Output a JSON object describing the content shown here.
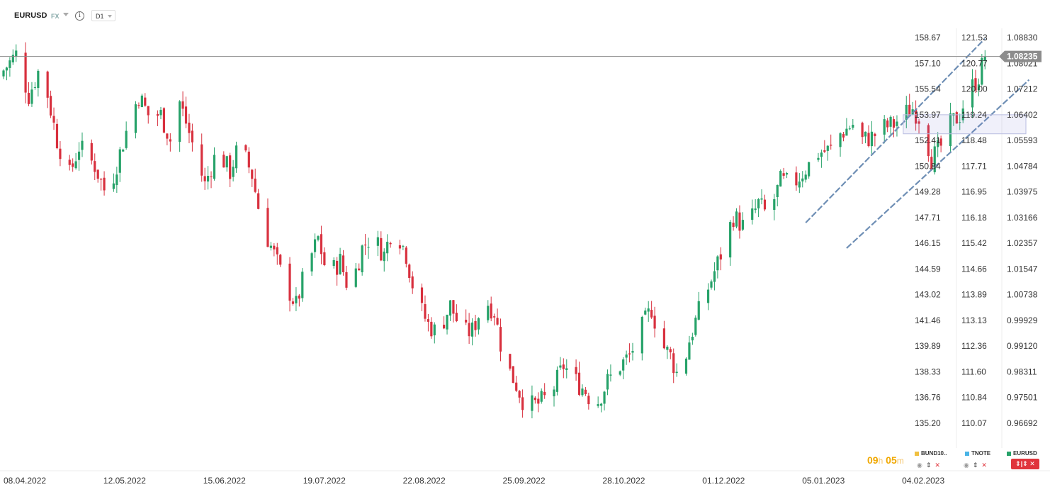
{
  "header": {
    "symbol": "EURUSD",
    "market": "FX",
    "info_glyph": "i",
    "timeframe": "D1"
  },
  "countdown": {
    "hours": "09",
    "hours_unit": "h",
    "minutes": "05",
    "minutes_unit": "m"
  },
  "legend": [
    {
      "name": "BUND10..",
      "color": "#f0c040"
    },
    {
      "name": "TNOTE",
      "color": "#4ab4e6"
    },
    {
      "name": "EURUSD",
      "color": "#26a269"
    }
  ],
  "controls": {
    "eye": "◉",
    "updown": "⇕",
    "close": "✕",
    "active": "⇕|⇕ ✕"
  },
  "chart_data": {
    "type": "candlestick",
    "title": "",
    "x_dates": [
      "08.04.2022",
      "12.05.2022",
      "15.06.2022",
      "19.07.2022",
      "22.08.2022",
      "25.09.2022",
      "28.10.2022",
      "01.12.2022",
      "05.01.2023",
      "04.02.2023"
    ],
    "axes": [
      {
        "name": "BUND10",
        "ticks": [
          "158.67",
          "157.10",
          "155.54",
          "153.97",
          "152.41",
          "150.84",
          "149.28",
          "147.71",
          "146.15",
          "144.59",
          "143.02",
          "141.46",
          "139.89",
          "138.33",
          "136.76",
          "135.20"
        ]
      },
      {
        "name": "TNOTE",
        "ticks": [
          "121.53",
          "120.77",
          "120.00",
          "119.24",
          "118.48",
          "117.71",
          "116.95",
          "116.18",
          "115.42",
          "114.66",
          "113.89",
          "113.13",
          "112.36",
          "111.60",
          "110.84",
          "110.07"
        ]
      },
      {
        "name": "EURUSD",
        "ticks": [
          "1.08830",
          "1.08021",
          "1.07212",
          "1.06402",
          "1.05593",
          "1.04784",
          "1.03975",
          "1.03166",
          "1.02357",
          "1.01547",
          "1.00738",
          "0.99929",
          "0.99120",
          "0.98311",
          "0.97501",
          "0.96692"
        ]
      }
    ],
    "current_price": "1.08235",
    "close_path": [
      [
        0,
        1.078
      ],
      [
        4,
        1.083
      ],
      [
        8,
        1.07
      ],
      [
        12,
        1.08
      ],
      [
        17,
        1.056
      ],
      [
        21,
        1.045
      ],
      [
        24,
        1.054
      ],
      [
        29,
        1.048
      ],
      [
        33,
        1.038
      ],
      [
        37,
        1.052
      ],
      [
        40,
        1.062
      ],
      [
        43,
        1.07
      ],
      [
        46,
        1.064
      ],
      [
        50,
        1.064
      ],
      [
        53,
        1.056
      ],
      [
        56,
        1.068
      ],
      [
        60,
        1.055
      ],
      [
        64,
        1.042
      ],
      [
        68,
        1.053
      ],
      [
        72,
        1.046
      ],
      [
        75,
        1.055
      ],
      [
        79,
        1.045
      ],
      [
        82,
        1.03
      ],
      [
        86,
        1.02
      ],
      [
        89,
        1.012
      ],
      [
        93,
        1.004
      ],
      [
        96,
        1.015
      ],
      [
        100,
        1.025
      ],
      [
        103,
        1.013
      ],
      [
        107,
        1.018
      ],
      [
        110,
        1.008
      ],
      [
        114,
        1.022
      ],
      [
        117,
        1.026
      ],
      [
        121,
        1.02
      ],
      [
        124,
        1.03
      ],
      [
        128,
        1.02
      ],
      [
        131,
        1.006
      ],
      [
        135,
        0.998
      ],
      [
        138,
        0.995
      ],
      [
        142,
        1.004
      ],
      [
        146,
        0.995
      ],
      [
        149,
        0.996
      ],
      [
        153,
        1.006
      ],
      [
        156,
        1.002
      ],
      [
        159,
        0.987
      ],
      [
        163,
        0.979
      ],
      [
        166,
        0.972
      ],
      [
        170,
        0.973
      ],
      [
        174,
        0.976
      ],
      [
        178,
        0.985
      ],
      [
        182,
        0.98
      ],
      [
        185,
        0.977
      ],
      [
        188,
        0.972
      ],
      [
        192,
        0.98
      ],
      [
        196,
        0.985
      ],
      [
        199,
        0.988
      ],
      [
        202,
        0.995
      ],
      [
        206,
        1.003
      ],
      [
        209,
        0.992
      ],
      [
        212,
        0.988
      ],
      [
        215,
        0.98
      ],
      [
        218,
        0.993
      ],
      [
        221,
        1.002
      ],
      [
        225,
        1.012
      ],
      [
        228,
        1.02
      ],
      [
        232,
        1.032
      ],
      [
        236,
        1.028
      ],
      [
        240,
        1.036
      ],
      [
        243,
        1.032
      ],
      [
        247,
        1.043
      ],
      [
        251,
        1.042
      ],
      [
        255,
        1.047
      ],
      [
        259,
        1.052
      ],
      [
        263,
        1.053
      ],
      [
        266,
        1.058
      ],
      [
        270,
        1.061
      ],
      [
        273,
        1.056
      ],
      [
        276,
        1.057
      ],
      [
        280,
        1.06
      ],
      [
        283,
        1.061
      ],
      [
        286,
        1.064
      ],
      [
        289,
        1.066
      ],
      [
        292,
        1.062
      ],
      [
        295,
        1.05
      ],
      [
        298,
        1.054
      ],
      [
        301,
        1.061
      ],
      [
        304,
        1.064
      ],
      [
        306,
        1.07
      ],
      [
        308,
        1.073
      ],
      [
        310,
        1.076
      ],
      [
        312,
        1.0823
      ]
    ],
    "annotations": [
      {
        "type": "channel_line",
        "from": [
          255,
          1.03
        ],
        "to": [
          312,
          1.088
        ]
      },
      {
        "type": "channel_line",
        "from": [
          268,
          1.022
        ],
        "to": [
          326,
          1.075
        ]
      },
      {
        "type": "rectangle",
        "from": [
          286,
          1.064
        ],
        "to": [
          325,
          1.058
        ]
      }
    ]
  }
}
